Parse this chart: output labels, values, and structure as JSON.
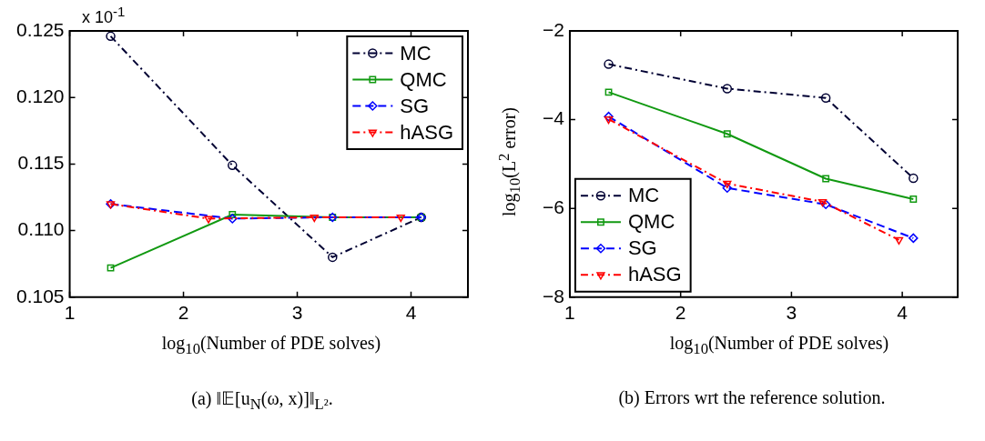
{
  "chart_data": [
    {
      "type": "line",
      "xlabel": "log$_{10}$(Number of PDE solves)",
      "xlim": [
        1,
        4.5
      ],
      "xticks": [
        1,
        2,
        3,
        4
      ],
      "ylim": [
        0.105,
        0.125
      ],
      "yticks": [
        0.105,
        {
          "value": 0.11,
          "label": "0.110"
        },
        0.115,
        {
          "value": 0.12,
          "label": "0.120"
        },
        0.125
      ],
      "grid": false,
      "legend": "top right",
      "annotations": [
        "x 10$^{-1}$",
        "(a) ‖𝔼[u$_{N}$(ω, x)]‖$_{L²}$."
      ],
      "series": [
        {
          "name": "MC",
          "color": "#000033",
          "marker": "circle",
          "line_style": "dashdot",
          "x": [
            1.36,
            2.43,
            3.31,
            4.09
          ],
          "values": [
            0.1246,
            0.1149,
            0.108,
            0.111
          ]
        },
        {
          "name": "QMC",
          "color": "#119911",
          "marker": "square",
          "line_style": "solid",
          "x": [
            1.36,
            2.43,
            3.31,
            4.09
          ],
          "values": [
            0.1072,
            0.1112,
            0.111,
            0.111
          ]
        },
        {
          "name": "SG",
          "color": "#0000ff",
          "marker": "diamond",
          "line_style": "dashed",
          "x": [
            1.36,
            2.43,
            3.31,
            4.09
          ],
          "values": [
            0.112,
            0.1109,
            0.111,
            0.111
          ]
        },
        {
          "name": "hASG",
          "color": "#ff0000",
          "marker": "triangle",
          "line_style": "dashdot",
          "x": [
            1.36,
            2.22,
            3.15,
            3.91
          ],
          "values": [
            0.112,
            0.1109,
            0.111,
            0.111
          ]
        }
      ]
    },
    {
      "type": "line",
      "xlabel": "log$_{10}$(Number of PDE solves)",
      "ylabel": "log$_{10}$(L$^{2}$ error)",
      "xlim": [
        1,
        4.5
      ],
      "xticks": [
        1,
        2,
        3,
        4
      ],
      "ylim": [
        -8,
        -2
      ],
      "yticks": [
        {
          "value": -8,
          "label": "−8"
        },
        {
          "value": -6,
          "label": "−6"
        },
        {
          "value": -4,
          "label": "−4"
        },
        {
          "value": -2,
          "label": "−2"
        }
      ],
      "grid": false,
      "legend": "bottom left",
      "annotations": [
        "(b) Errors wrt the reference solution."
      ],
      "series": [
        {
          "name": "MC",
          "color": "#000033",
          "marker": "circle",
          "line_style": "dashdot",
          "x": [
            1.35,
            2.42,
            3.31,
            4.1
          ],
          "values": [
            -2.75,
            -3.3,
            -3.51,
            -5.32
          ]
        },
        {
          "name": "QMC",
          "color": "#119911",
          "marker": "square",
          "line_style": "solid",
          "x": [
            1.35,
            2.42,
            3.31,
            4.1
          ],
          "values": [
            -3.38,
            -4.32,
            -5.33,
            -5.79
          ]
        },
        {
          "name": "SG",
          "color": "#0000ff",
          "marker": "diamond",
          "line_style": "dashed",
          "x": [
            1.35,
            2.42,
            3.31,
            4.1
          ],
          "values": [
            -3.93,
            -5.54,
            -5.91,
            -6.67
          ]
        },
        {
          "name": "hASG",
          "color": "#ff0000",
          "marker": "triangle",
          "line_style": "dashdot",
          "x": [
            1.35,
            2.42,
            3.28,
            3.97
          ],
          "values": [
            -3.99,
            -5.44,
            -5.85,
            -6.71
          ]
        }
      ]
    }
  ]
}
